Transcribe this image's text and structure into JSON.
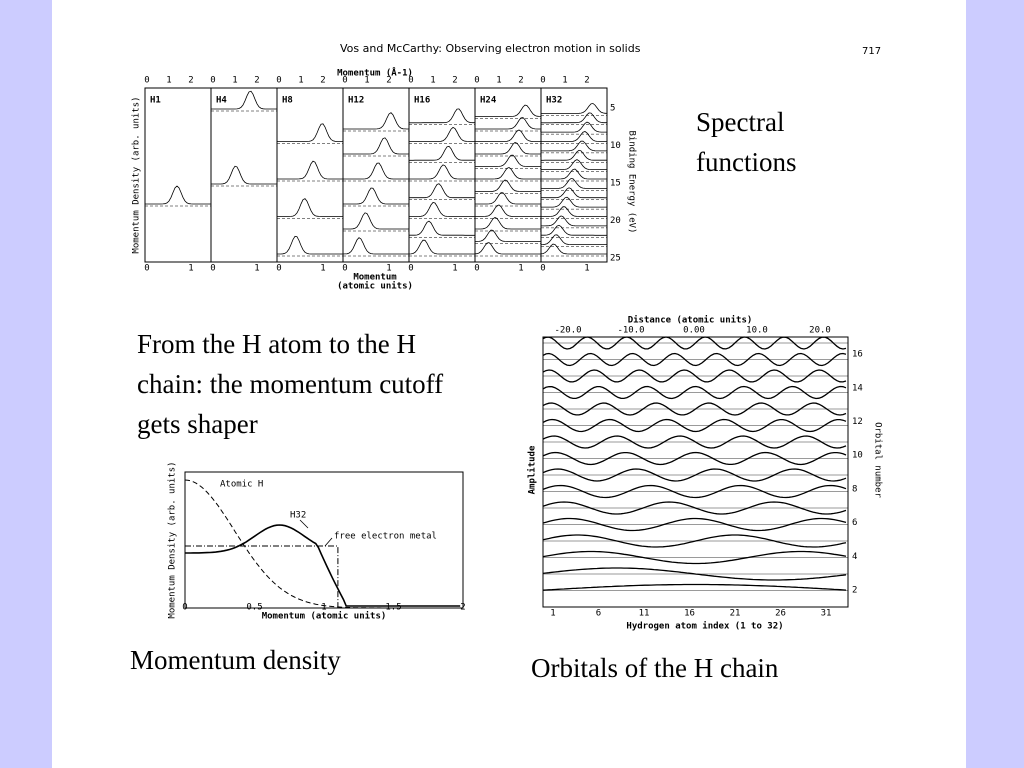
{
  "header": {
    "title": "Vos and McCarthy:  Observing electron motion in solids",
    "page": "717"
  },
  "captions": {
    "spectral": "Spectral functions",
    "intro": "From the H atom to the H chain: the momentum cutoff gets shaper",
    "momentum": "Momentum density",
    "orbitals": "Orbitals of the H chain"
  },
  "figure1": {
    "top_axis": "Momentum  (Å-1)",
    "panels": [
      "H1",
      "H4",
      "H8",
      "H12",
      "H16",
      "H24",
      "H32"
    ],
    "top_ticks": [
      "0",
      "1",
      "2"
    ],
    "bottom_ticks": [
      "0",
      "1"
    ],
    "y_label": "Momentum Density (arb. units)",
    "right_label": "Binding Energy  (eV)",
    "right_ticks": [
      "5",
      "10",
      "15",
      "20",
      "25"
    ],
    "bottom_axis": "Momentum",
    "bottom_axis_units": "(atomic  units)"
  },
  "figure2": {
    "y_label": "Momentum Density (arb. units)",
    "x_label": "Momentum   (atomic  units)",
    "xticks": [
      "0",
      "0.5",
      "1",
      "1.5",
      "2"
    ],
    "atomic": "Atomic H",
    "chain": "H32",
    "metal": "free electron metal"
  },
  "figure3": {
    "top_axis": "Distance (atomic units)",
    "top_ticks": [
      "-20.0",
      "-10.0",
      "0.00",
      "10.0",
      "20.0"
    ],
    "bottom_axis": "Hydrogen atom index (1 to 32)",
    "bottom_ticks": [
      "1",
      "6",
      "11",
      "16",
      "21",
      "26",
      "31"
    ],
    "y_label": "Amplitude",
    "right_label": "Orbital  number",
    "right_ticks": [
      "2",
      "4",
      "6",
      "8",
      "10",
      "12",
      "14",
      "16"
    ]
  }
}
